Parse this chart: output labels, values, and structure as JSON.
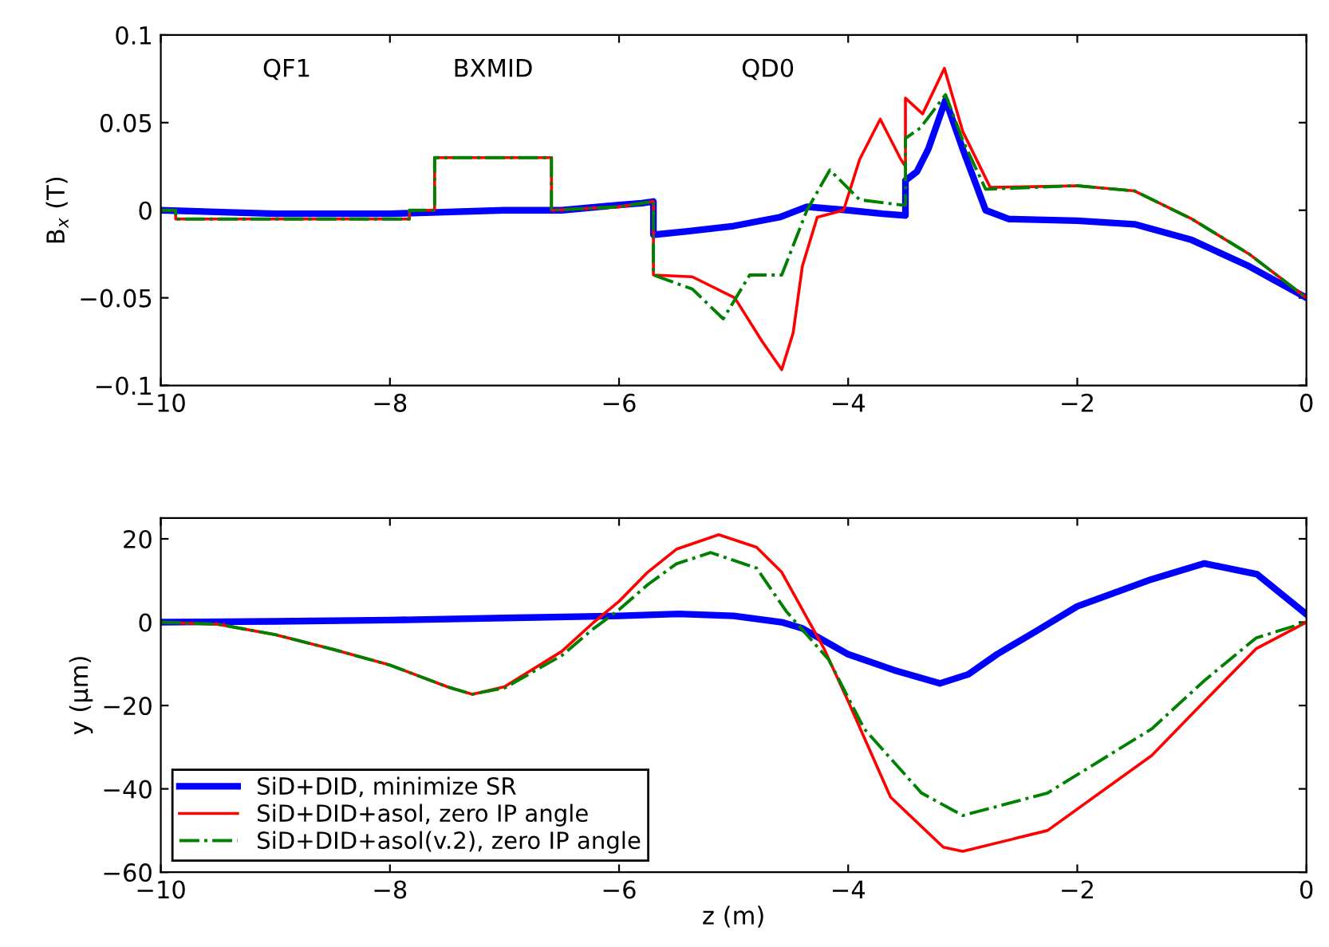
{
  "chart_data": [
    {
      "type": "line",
      "ylabel": "B$_{x}$ (T)",
      "xlim": [
        -10,
        0
      ],
      "ylim": [
        -0.1,
        0.1
      ],
      "xticks": [
        -10,
        -8,
        -6,
        -4,
        -2,
        0
      ],
      "yticks": [
        -0.1,
        -0.05,
        0,
        0.05,
        0.1
      ],
      "grid": false,
      "legend": false,
      "marker": "none",
      "annotations": [
        "QF1",
        "BXMID",
        "QD0"
      ],
      "series": [
        {
          "color": "#0000ff",
          "line_style": "solid",
          "x": [
            -10,
            -9,
            -8,
            -7,
            -6.5,
            -6,
            -5.8,
            -5.7,
            -5.7,
            -5.4,
            -5,
            -4.6,
            -4.36,
            -4,
            -3.7,
            -3.5,
            -3.5,
            -3.4,
            -3.3,
            -3.15,
            -3.0,
            -2.8,
            -2.6,
            -2.0,
            -1.5,
            -1.0,
            -0.5,
            0
          ],
          "values": [
            0,
            -0.002,
            -0.002,
            0,
            0,
            0.003,
            0.004,
            0.005,
            -0.014,
            -0.012,
            -0.009,
            -0.004,
            0.002,
            0.0,
            -0.002,
            -0.003,
            0.017,
            0.022,
            0.035,
            0.063,
            0.035,
            0,
            -0.005,
            -0.006,
            -0.008,
            -0.017,
            -0.032,
            -0.05
          ]
        },
        {
          "color": "#ff0000",
          "line_style": "solid",
          "x": [
            -10,
            -9.87,
            -9.87,
            -7.83,
            -7.83,
            -7.61,
            -7.61,
            -6.59,
            -6.59,
            -6.0,
            -5.7,
            -5.7,
            -5.36,
            -4.99,
            -4.75,
            -4.58,
            -4.48,
            -4.4,
            -4.27,
            -4.04,
            -3.9,
            -3.72,
            -3.54,
            -3.5,
            -3.5,
            -3.35,
            -3.16,
            -3.0,
            -2.76,
            -2.0,
            -1.5,
            -1.0,
            -0.5,
            0
          ],
          "values": [
            0,
            0,
            -0.005,
            -0.005,
            0,
            0,
            0.03,
            0.03,
            0,
            0.002,
            0.005,
            -0.037,
            -0.038,
            -0.05,
            -0.075,
            -0.091,
            -0.07,
            -0.032,
            -0.004,
            0,
            0.029,
            0.052,
            0.029,
            0.025,
            0.064,
            0.055,
            0.081,
            0.045,
            0.013,
            0.014,
            0.011,
            -0.005,
            -0.025,
            -0.05
          ]
        },
        {
          "color": "#008000",
          "line_style": "dashdot",
          "x": [
            -10,
            -9.87,
            -9.87,
            -7.83,
            -7.83,
            -7.61,
            -7.61,
            -6.59,
            -6.59,
            -6.0,
            -5.7,
            -5.7,
            -5.36,
            -5.09,
            -4.86,
            -4.58,
            -4.36,
            -4.16,
            -3.9,
            -3.54,
            -3.5,
            -3.5,
            -3.37,
            -3.15,
            -3.0,
            -2.8,
            -2.0,
            -1.5,
            -1.0,
            -0.5,
            0
          ],
          "values": [
            0,
            0,
            -0.005,
            -0.005,
            0,
            0,
            0.03,
            0.03,
            0,
            0.002,
            0.005,
            -0.037,
            -0.045,
            -0.062,
            -0.037,
            -0.037,
            0,
            0.023,
            0.006,
            0.003,
            0.003,
            0.041,
            0.047,
            0.066,
            0.04,
            0.012,
            0.014,
            0.011,
            -0.005,
            -0.025,
            -0.05
          ]
        }
      ]
    },
    {
      "type": "line",
      "xlabel": "z (m)",
      "ylabel": "y (µm)",
      "xlim": [
        -10,
        0
      ],
      "ylim": [
        -60,
        25
      ],
      "xticks": [
        -10,
        -8,
        -6,
        -4,
        -2,
        0
      ],
      "yticks": [
        -60,
        -40,
        -20,
        0,
        20
      ],
      "grid": false,
      "legend": "bottom left",
      "marker": "none",
      "series": [
        {
          "name": "SiD+DID, minimize SR",
          "color": "#0000ff",
          "line_style": "solid",
          "x": [
            -10,
            -9,
            -8,
            -7,
            -6,
            -5.48,
            -5.0,
            -4.58,
            -4.4,
            -4.0,
            -3.6,
            -3.2,
            -2.95,
            -2.7,
            -2.35,
            -2.0,
            -1.35,
            -0.89,
            -0.43,
            0
          ],
          "values": [
            0,
            0.2,
            0.5,
            1,
            1.5,
            2,
            1.5,
            0,
            -1.5,
            -7.7,
            -11.5,
            -14.7,
            -12.5,
            -7.7,
            -2,
            3.8,
            10.3,
            14.1,
            11.5,
            1.9
          ]
        },
        {
          "name": "SiD+DID+asol, zero IP angle",
          "color": "#ff0000",
          "line_style": "solid",
          "x": [
            -10,
            -9.5,
            -9,
            -8.5,
            -8,
            -7.5,
            -7.28,
            -7,
            -6.5,
            -6.22,
            -6.0,
            -5.75,
            -5.5,
            -5.13,
            -4.8,
            -4.58,
            -4.21,
            -4.0,
            -3.63,
            -3.17,
            -3.0,
            -2.26,
            -1.35,
            -0.89,
            -0.44,
            0
          ],
          "values": [
            0,
            -0.5,
            -3,
            -6.5,
            -10.3,
            -15.5,
            -17.3,
            -15.5,
            -7,
            0,
            5,
            12,
            17.5,
            21,
            18,
            12,
            -6.4,
            -19,
            -42,
            -54,
            -55,
            -50,
            -32,
            -19,
            -6.4,
            0
          ]
        },
        {
          "name": "SiD+DID+asol(v.2), zero IP angle",
          "color": "#008000",
          "line_style": "dashdot",
          "x": [
            -10,
            -9.5,
            -9,
            -8.5,
            -8,
            -7.5,
            -7.28,
            -7,
            -6.5,
            -6.22,
            -6.0,
            -5.75,
            -5.5,
            -5.2,
            -4.8,
            -4.54,
            -4.17,
            -3.86,
            -3.36,
            -3.0,
            -2.26,
            -1.35,
            -0.89,
            -0.44,
            0
          ],
          "values": [
            0,
            -0.5,
            -3,
            -6.5,
            -10.3,
            -15.5,
            -17.3,
            -15.8,
            -8,
            -1.5,
            3,
            9,
            14,
            16.7,
            13,
            2.6,
            -9,
            -25.6,
            -41,
            -46.4,
            -41,
            -25.6,
            -14,
            -3.8,
            0
          ]
        }
      ]
    }
  ]
}
